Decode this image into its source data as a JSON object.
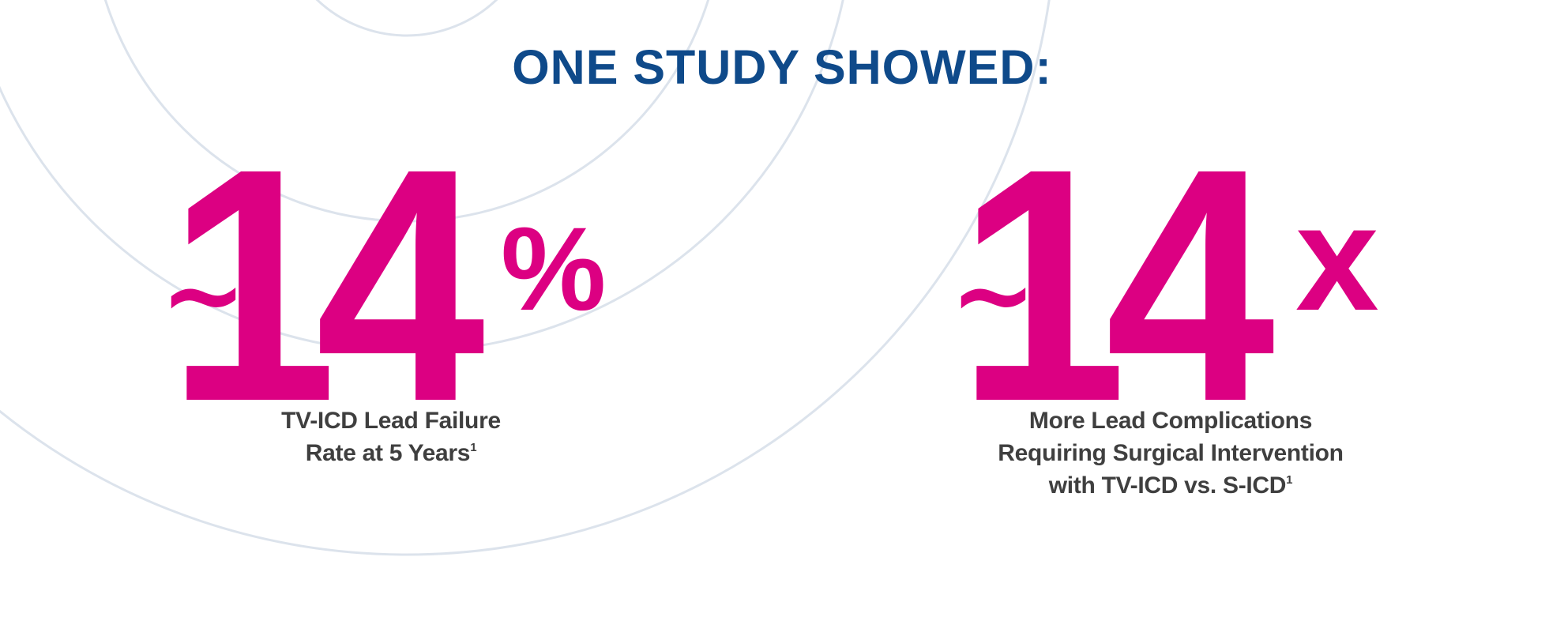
{
  "headline": "ONE STUDY SHOWED:",
  "colors": {
    "headline": "#0f4a8a",
    "stat": "#dc0082",
    "caption": "#3f3f3f",
    "rings": "#dce3ec"
  },
  "stats": [
    {
      "approx": "~",
      "number": "14",
      "suffix": "%",
      "caption_lines": [
        "TV-ICD Lead Failure",
        "Rate at 5 Years"
      ],
      "footnote": "1"
    },
    {
      "approx": "~",
      "number": "14",
      "suffix": "x",
      "caption_lines": [
        "More Lead Complications",
        "Requiring Surgical Intervention",
        "with TV-ICD vs. S-ICD"
      ],
      "footnote": "1"
    }
  ]
}
